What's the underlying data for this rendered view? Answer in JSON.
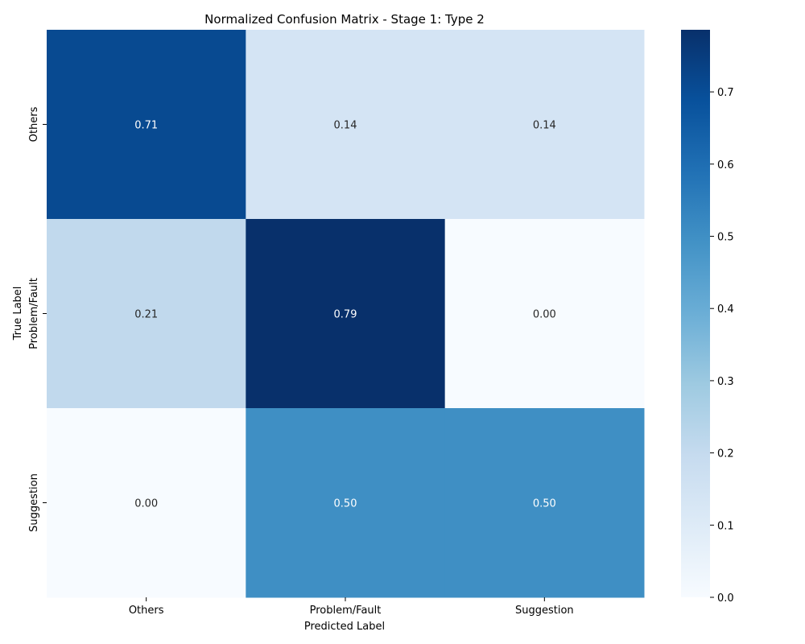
{
  "chart_data": {
    "type": "heatmap",
    "title": "Normalized Confusion Matrix - Stage 1: Type 2",
    "xlabel": "Predicted Label",
    "ylabel": "True Label",
    "x_categories": [
      "Others",
      "Problem/Fault",
      "Suggestion"
    ],
    "y_categories": [
      "Others",
      "Problem/Fault",
      "Suggestion"
    ],
    "values": [
      [
        0.71,
        0.14,
        0.14
      ],
      [
        0.21,
        0.79,
        0.0
      ],
      [
        0.0,
        0.5,
        0.5
      ]
    ],
    "cell_labels": [
      [
        "0.71",
        "0.14",
        "0.14"
      ],
      [
        "0.21",
        "0.79",
        "0.00"
      ],
      [
        "0.00",
        "0.50",
        "0.50"
      ]
    ],
    "colormap": "Blues",
    "colorbar": {
      "range": [
        0.0,
        0.786
      ],
      "ticks": [
        0.0,
        0.1,
        0.2,
        0.3,
        0.4,
        0.5,
        0.6,
        0.7
      ],
      "tick_labels": [
        "0.0",
        "0.1",
        "0.2",
        "0.3",
        "0.4",
        "0.5",
        "0.6",
        "0.7"
      ]
    }
  }
}
